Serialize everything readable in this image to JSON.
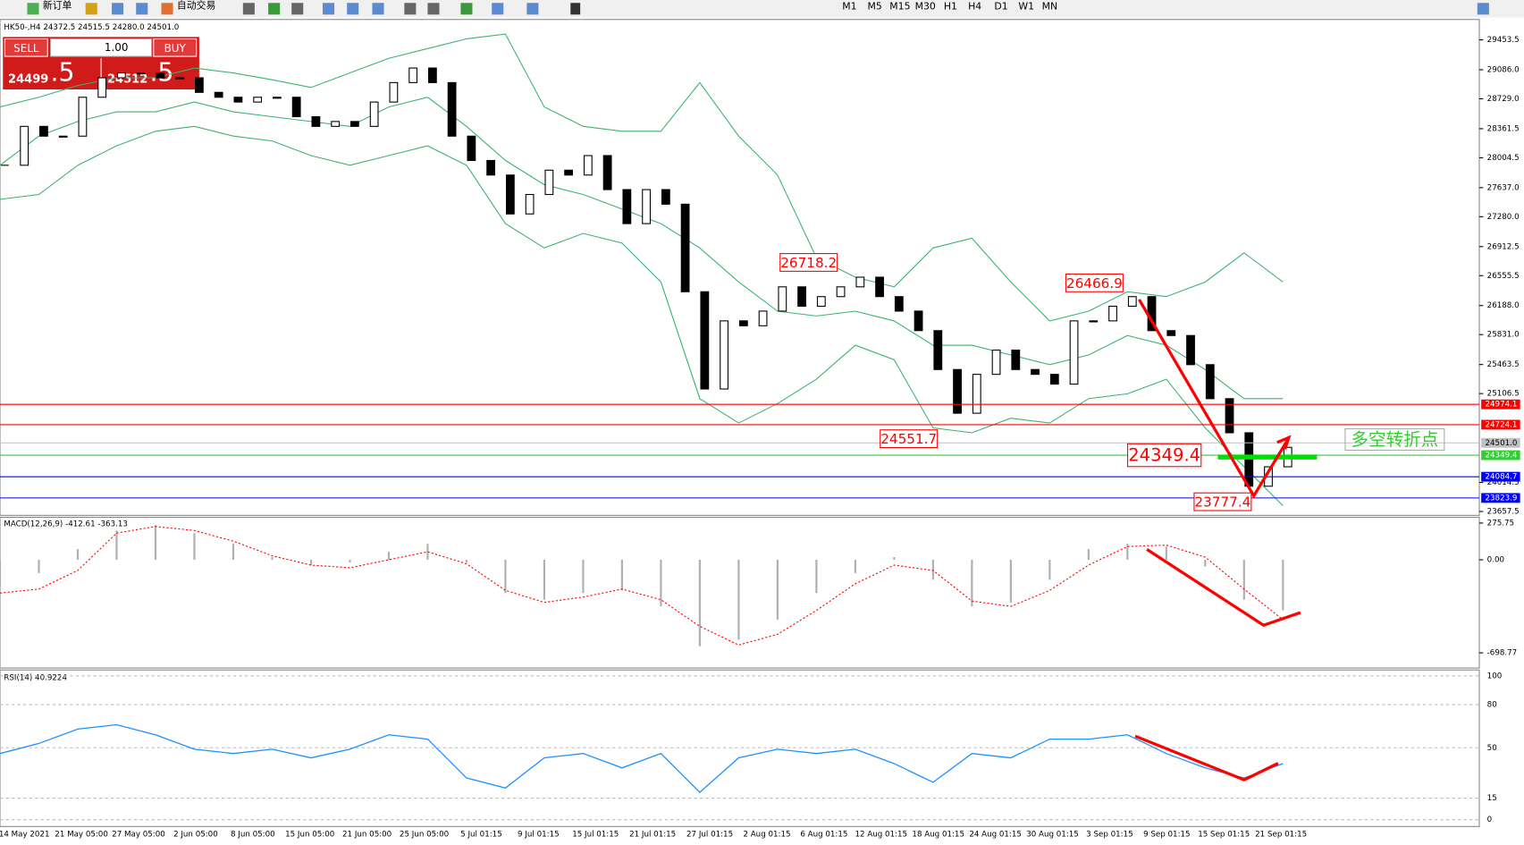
{
  "toolbar": {
    "new_order": "新订单",
    "auto_trading": "自动交易",
    "timeframes": [
      "M1",
      "M5",
      "M15",
      "M30",
      "H1",
      "H4",
      "D1",
      "W1",
      "MN"
    ]
  },
  "trade_panel": {
    "sell": "SELL",
    "lots": "1.00",
    "buy": "BUY",
    "bid_main": "24499",
    "bid_small": ".5",
    "ask_main": "24512",
    "ask_small": ".5"
  },
  "chart": {
    "title": "HK50-,H4 24372.5 24515.5 24280.0 24501.0",
    "ylim": [
      23610,
      29704
    ],
    "yticks": [
      29453.5,
      {
        "value": 29086,
        "label": "29086.0"
      },
      {
        "value": 28729,
        "label": "28729.0"
      },
      28361.5,
      28004.5,
      {
        "value": 27637,
        "label": "27637.0"
      },
      {
        "value": 27280,
        "label": "27280.0"
      },
      26912.5,
      26555.5,
      {
        "value": 26188,
        "label": "26188.0"
      },
      {
        "value": 25831,
        "label": "25831.0"
      },
      25463.5,
      25106.5,
      24014.5,
      23657.5
    ],
    "closes": [
      27912,
      28390,
      28270,
      28270,
      28748,
      28987,
      29047,
      29047,
      28987,
      28987,
      28808,
      28748,
      28689,
      28748,
      28748,
      28509,
      28390,
      28450,
      28390,
      28689,
      28928,
      29107,
      28928,
      28270,
      27971,
      27792,
      27314,
      27553,
      27852,
      27792,
      28031,
      27613,
      27195,
      27613,
      27434,
      26358,
      25163,
      26000,
      25940,
      26120,
      26418,
      26180,
      26298,
      26418,
      26537,
      26298,
      26120,
      25880,
      25402,
      24865,
      25343,
      25641,
      25402,
      25343,
      25223,
      26000,
      26000,
      26180,
      26298,
      25880,
      25820,
      25462,
      25044,
      24625,
      23968,
      24207,
      24446
    ],
    "upper_band": [
      28629,
      28748,
      28892,
      28987,
      28987,
      29107,
      29047,
      28963,
      28868,
      29047,
      29226,
      29346,
      29466,
      29525,
      28629,
      28390,
      28330,
      28330,
      28928,
      28270,
      27792,
      26776,
      26537,
      26418,
      26896,
      27016,
      26478,
      25999,
      26119,
      26358,
      26298,
      26478,
      26836,
      26478
    ],
    "middle_band": [
      27912,
      28271,
      28450,
      28569,
      28569,
      28689,
      28569,
      28509,
      28450,
      28390,
      28629,
      28748,
      28390,
      27972,
      27673,
      27553,
      27374,
      27195,
      26896,
      26478,
      26119,
      26060,
      26119,
      25999,
      25701,
      25701,
      25581,
      25462,
      25581,
      25820,
      25701,
      25402,
      25044,
      25044
    ],
    "lower_band": [
      27494,
      27553,
      27912,
      28151,
      28330,
      28390,
      28271,
      28211,
      28031,
      27912,
      28031,
      28151,
      27912,
      27195,
      26896,
      27075,
      26956,
      26478,
      25044,
      24745,
      24984,
      25283,
      25701,
      25522,
      24685,
      24625,
      24804,
      24745,
      25044,
      25104,
      25283,
      24685,
      24207,
      23729
    ],
    "band_color": "#3cb371",
    "levels": [
      {
        "value": 24974.1,
        "color": "#ff0000"
      },
      {
        "value": 24724.1,
        "color": "#ff0000"
      },
      {
        "value": 24501,
        "label": "24501.0",
        "color": "#c0c0c0"
      },
      {
        "value": 24349.4,
        "color": "#32cd32"
      },
      {
        "value": 24084.7,
        "color": "#0000ff"
      },
      {
        "value": 23823.9,
        "color": "#0000ff"
      }
    ],
    "annotations": [
      26718.2,
      26466.9,
      24551.7,
      24349.4,
      23777.4
    ],
    "turning_point": "多空转折点"
  },
  "macd": {
    "title": "MACD(12,26,9) -412.61 -363.13",
    "ylim": [
      -813,
      319
    ],
    "yticks": [
      275.75,
      {
        "value": 0,
        "label": "0.00"
      },
      -698.77
    ],
    "histogram": [
      -200,
      -100,
      80,
      220,
      260,
      200,
      120,
      20,
      -40,
      -20,
      60,
      120,
      -20,
      -250,
      -300,
      -250,
      -230,
      -350,
      -650,
      -600,
      -450,
      -250,
      -100,
      20,
      -150,
      -350,
      -320,
      -150,
      80,
      120,
      100,
      -50,
      -300,
      -380
    ],
    "signal": [
      -250,
      -220,
      -80,
      200,
      250,
      220,
      140,
      30,
      -40,
      -60,
      0,
      60,
      -30,
      -230,
      -320,
      -280,
      -220,
      -300,
      -500,
      -640,
      -560,
      -380,
      -180,
      -40,
      -80,
      -310,
      -350,
      -230,
      -40,
      100,
      110,
      20,
      -220,
      -450
    ]
  },
  "rsi": {
    "title": "RSI(14) 40.9224",
    "ylim": [
      0,
      100
    ],
    "yticks": [
      100,
      80,
      50,
      15,
      0
    ],
    "values": [
      46,
      53,
      63,
      66,
      59,
      49,
      46,
      49,
      43,
      49,
      59,
      56,
      29,
      22,
      43,
      46,
      36,
      46,
      19,
      43,
      49,
      46,
      49,
      39,
      26,
      46,
      43,
      56,
      56,
      59,
      46,
      36,
      29,
      39
    ],
    "color": "#1e90ff"
  },
  "x_axis": {
    "labels": [
      "14 May 2021",
      "21 May 05:00",
      "27 May 05:00",
      "2 Jun 05:00",
      "8 Jun 05:00",
      "15 Jun 05:00",
      "21 Jun 05:00",
      "25 Jun 05:00",
      "5 Jul 01:15",
      "9 Jul 01:15",
      "15 Jul 01:15",
      "21 Jul 01:15",
      "27 Jul 01:15",
      "2 Aug 01:15",
      "6 Aug 01:15",
      "12 Aug 01:15",
      "18 Aug 01:15",
      "24 Aug 01:15",
      "30 Aug 01:15",
      "3 Sep 01:15",
      "9 Sep 01:15",
      "15 Sep 01:15",
      "21 Sep 01:15"
    ]
  }
}
